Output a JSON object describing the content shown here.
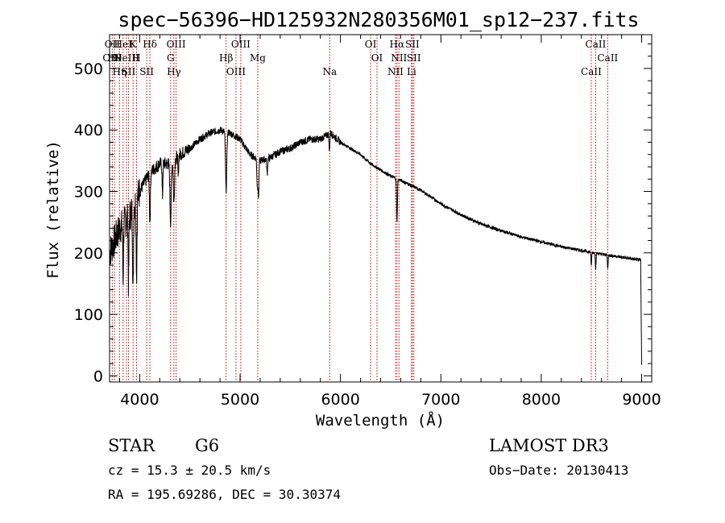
{
  "chart_data": {
    "type": "line",
    "title": "spec−56396−HD125932N280356M01_sp12−237.fits",
    "xlabel": "Wavelength (Å)",
    "ylabel": "Flux (relative)",
    "xlim": [
      3700,
      9100
    ],
    "ylim": [
      -10,
      555
    ],
    "x_ticks": [
      4000,
      5000,
      6000,
      7000,
      8000,
      9000
    ],
    "y_ticks": [
      0,
      100,
      200,
      300,
      400,
      500
    ],
    "series": [
      {
        "name": "flux",
        "continuum_knots": {
          "x": [
            3700,
            3800,
            3900,
            4000,
            4100,
            4200,
            4300,
            4400,
            4500,
            4600,
            4700,
            4800,
            4900,
            5000,
            5100,
            5200,
            5300,
            5400,
            5500,
            5600,
            5700,
            5800,
            5900,
            6000,
            6100,
            6200,
            6300,
            6400,
            6500,
            6600,
            6700,
            6800,
            7000,
            7200,
            7400,
            7600,
            7800,
            8000,
            8200,
            8400,
            8600,
            8800,
            8990,
            9000
          ],
          "y": [
            200,
            240,
            260,
            300,
            330,
            345,
            345,
            360,
            370,
            385,
            395,
            400,
            395,
            385,
            360,
            350,
            355,
            365,
            370,
            380,
            385,
            385,
            395,
            380,
            370,
            360,
            345,
            335,
            325,
            318,
            310,
            302,
            280,
            262,
            247,
            236,
            226,
            218,
            210,
            204,
            198,
            193,
            188,
            20
          ]
        },
        "absorption_lines": [
          {
            "x": 3934,
            "depth": 140,
            "width": 6
          },
          {
            "x": 3969,
            "depth": 120,
            "width": 6
          },
          {
            "x": 3835,
            "depth": 90,
            "width": 5
          },
          {
            "x": 3889,
            "depth": 110,
            "width": 5
          },
          {
            "x": 4102,
            "depth": 80,
            "width": 7
          },
          {
            "x": 4227,
            "depth": 55,
            "width": 5
          },
          {
            "x": 4308,
            "depth": 95,
            "width": 9
          },
          {
            "x": 4341,
            "depth": 70,
            "width": 8
          },
          {
            "x": 4384,
            "depth": 35,
            "width": 5
          },
          {
            "x": 4861,
            "depth": 95,
            "width": 9
          },
          {
            "x": 5172,
            "depth": 45,
            "width": 7
          },
          {
            "x": 5184,
            "depth": 60,
            "width": 6
          },
          {
            "x": 5270,
            "depth": 25,
            "width": 6
          },
          {
            "x": 5890,
            "depth": 30,
            "width": 5
          },
          {
            "x": 6563,
            "depth": 70,
            "width": 6
          },
          {
            "x": 8498,
            "depth": 22,
            "width": 5
          },
          {
            "x": 8542,
            "depth": 25,
            "width": 5
          },
          {
            "x": 8662,
            "depth": 22,
            "width": 5
          }
        ]
      }
    ],
    "line_markers": [
      {
        "wavelength": 3727,
        "labels": [
          "OII",
          "OIII"
        ]
      },
      {
        "wavelength": 3750,
        "labels": [
          "Hθ"
        ]
      },
      {
        "wavelength": 3799,
        "labels": [
          "Hη"
        ]
      },
      {
        "wavelength": 3835,
        "labels": [
          "HeI"
        ]
      },
      {
        "wavelength": 3869,
        "labels": [
          "NeIII"
        ]
      },
      {
        "wavelength": 3889,
        "labels": [
          "SII"
        ]
      },
      {
        "wavelength": 3934,
        "labels": [
          "K"
        ]
      },
      {
        "wavelength": 3969,
        "labels": [
          "H"
        ]
      },
      {
        "wavelength": 4070,
        "labels": [
          "SII"
        ]
      },
      {
        "wavelength": 4102,
        "labels": [
          "Hδ"
        ]
      },
      {
        "wavelength": 4308,
        "labels": [
          "G"
        ]
      },
      {
        "wavelength": 4341,
        "labels": [
          "Hγ"
        ]
      },
      {
        "wavelength": 4363,
        "labels": [
          "OIII"
        ]
      },
      {
        "wavelength": 4861,
        "labels": [
          "Hβ"
        ]
      },
      {
        "wavelength": 4959,
        "labels": [
          "OIII"
        ]
      },
      {
        "wavelength": 5007,
        "labels": [
          "OIII"
        ]
      },
      {
        "wavelength": 5176,
        "labels": [
          "Mg"
        ]
      },
      {
        "wavelength": 5893,
        "labels": [
          "Na"
        ]
      },
      {
        "wavelength": 6300,
        "labels": [
          "OI"
        ]
      },
      {
        "wavelength": 6364,
        "labels": [
          "OI"
        ]
      },
      {
        "wavelength": 6548,
        "labels": [
          "NII"
        ]
      },
      {
        "wavelength": 6563,
        "labels": [
          "Hα"
        ]
      },
      {
        "wavelength": 6583,
        "labels": [
          "NII"
        ]
      },
      {
        "wavelength": 6708,
        "labels": [
          "Li"
        ]
      },
      {
        "wavelength": 6716,
        "labels": [
          "SII"
        ]
      },
      {
        "wavelength": 6731,
        "labels": [
          "SII"
        ]
      },
      {
        "wavelength": 8498,
        "labels": [
          "CaII"
        ]
      },
      {
        "wavelength": 8542,
        "labels": [
          "CaII"
        ]
      },
      {
        "wavelength": 8662,
        "labels": [
          "CaII"
        ]
      }
    ]
  },
  "marker_color": "#cc0000",
  "info": {
    "object_type": "STAR",
    "subclass": "G6",
    "survey": "LAMOST DR3",
    "redshift": "cz = 15.3 ± 20.5 km/s",
    "obs_date": "Obs−Date: 20130413",
    "coords": "RA = 195.69286, DEC =  30.30374"
  }
}
